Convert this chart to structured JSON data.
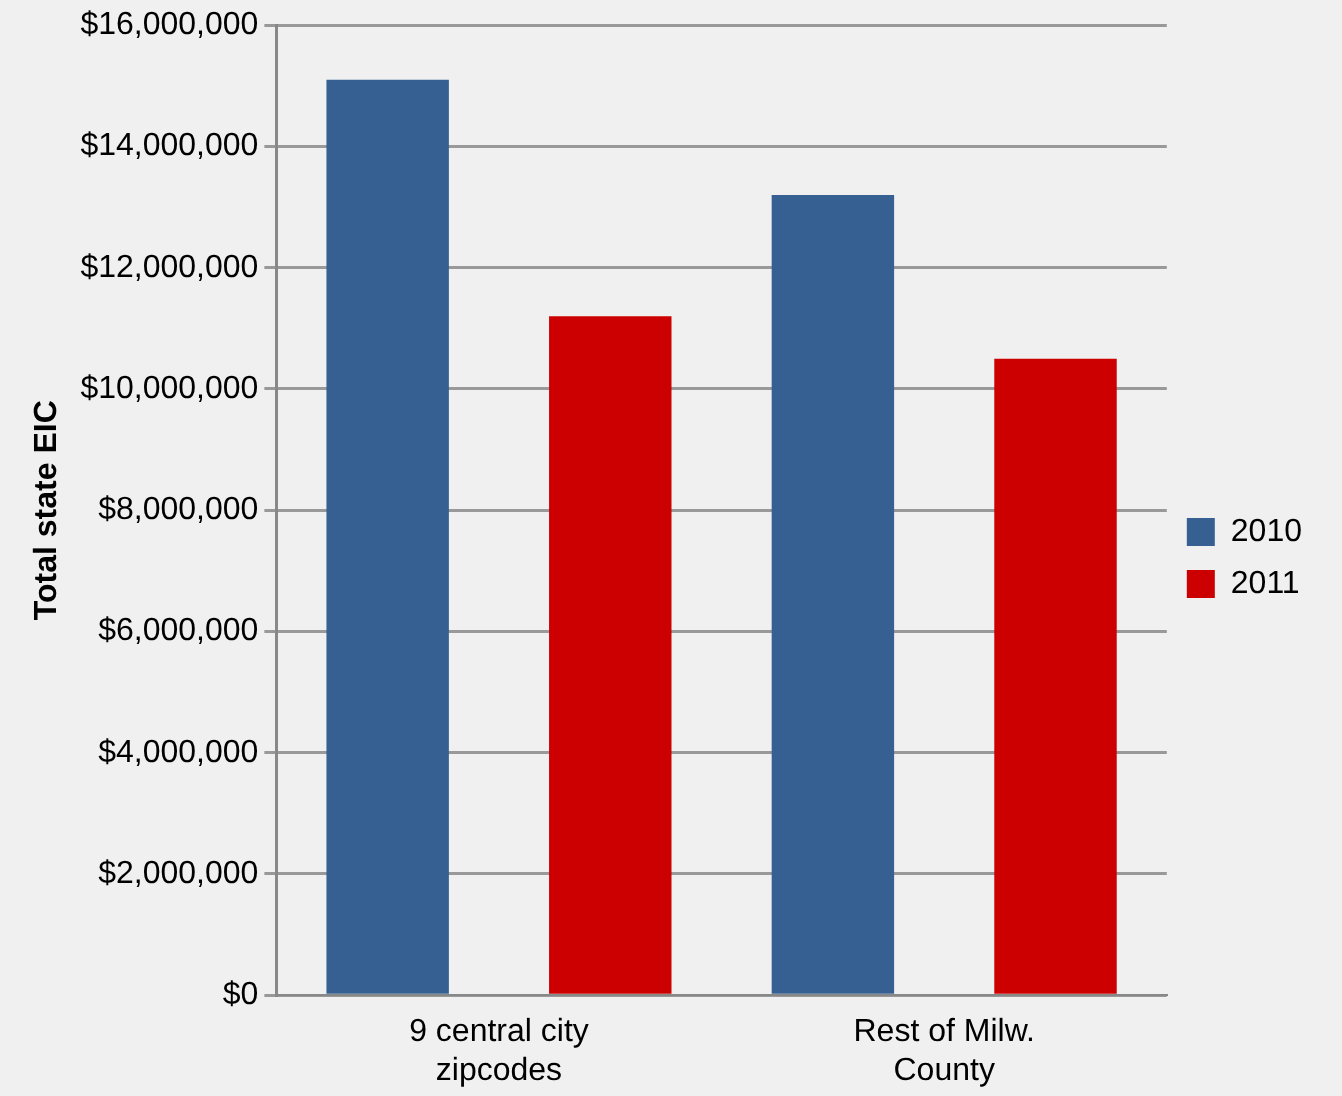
{
  "chart_data": {
    "type": "bar",
    "ylabel": "Total state EIC",
    "categories": [
      "9 central city zipcodes",
      "Rest of Milw. County"
    ],
    "series": [
      {
        "name": "2010",
        "color": "#366092",
        "values": [
          15100000,
          13200000
        ]
      },
      {
        "name": "2011",
        "color": "#cc0000",
        "values": [
          11200000,
          10500000
        ]
      }
    ],
    "ylim": [
      0,
      16000000
    ],
    "yticks": [
      {
        "value": 0,
        "label": "$0"
      },
      {
        "value": 2000000,
        "label": "$2,000,000"
      },
      {
        "value": 4000000,
        "label": "$4,000,000"
      },
      {
        "value": 6000000,
        "label": "$6,000,000"
      },
      {
        "value": 8000000,
        "label": "$8,000,000"
      },
      {
        "value": 10000000,
        "label": "$10,000,000"
      },
      {
        "value": 12000000,
        "label": "$12,000,000"
      },
      {
        "value": 14000000,
        "label": "$14,000,000"
      },
      {
        "value": 16000000,
        "label": "$16,000,000"
      }
    ],
    "grid": "y",
    "legend": "right"
  }
}
